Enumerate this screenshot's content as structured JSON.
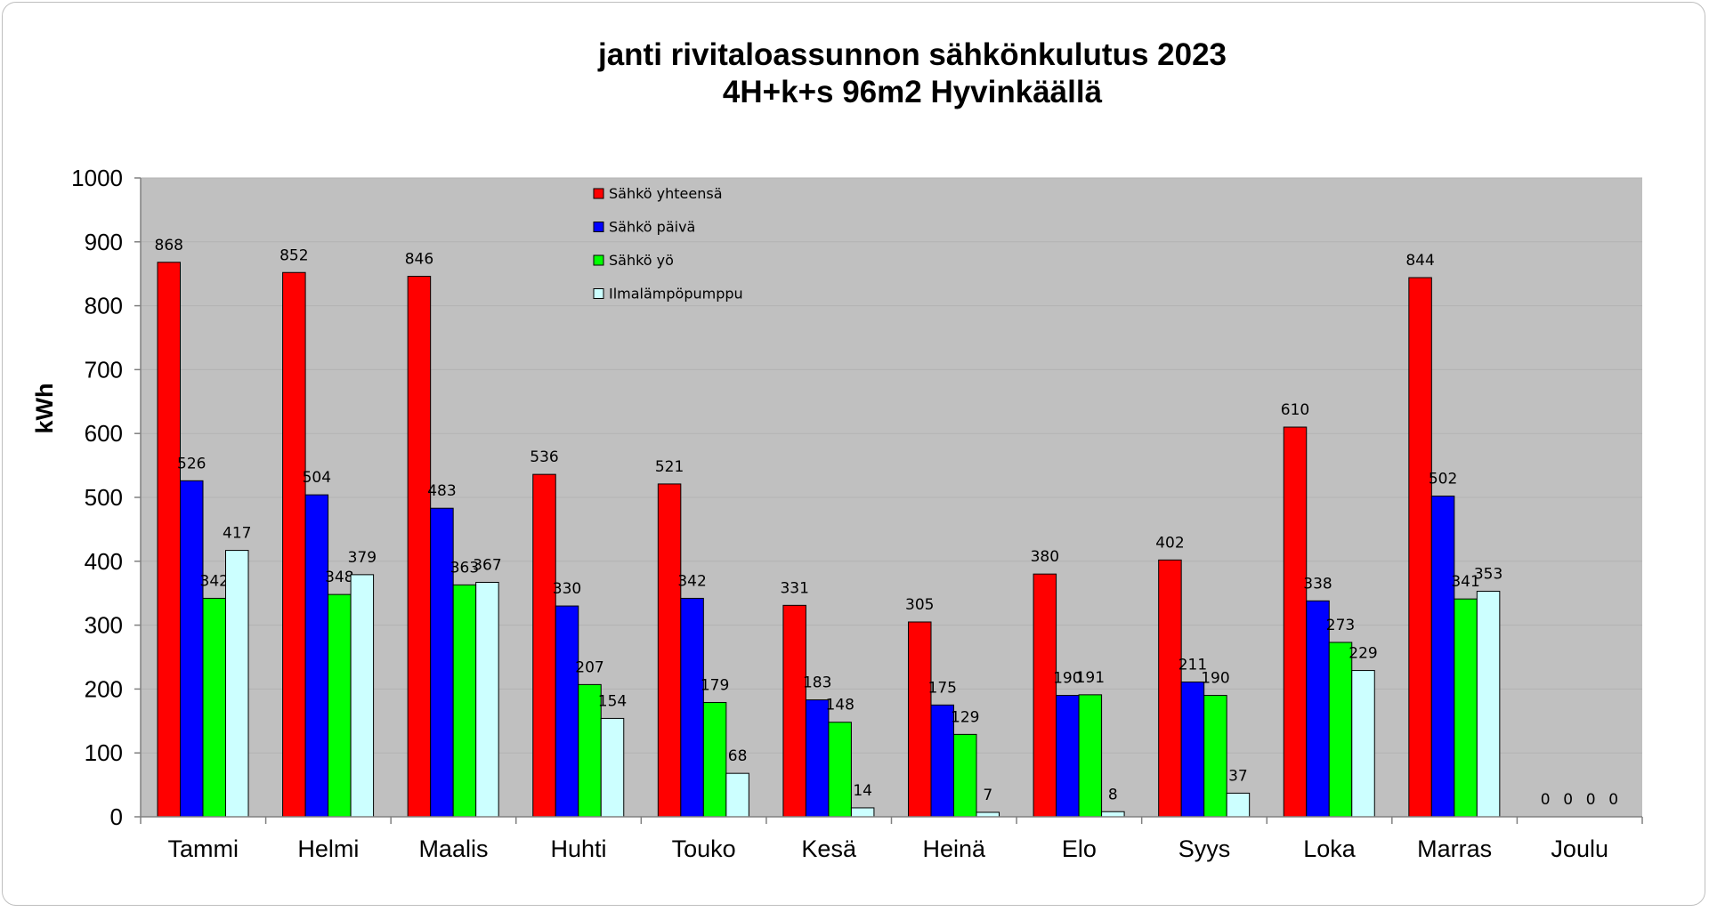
{
  "chart_data": {
    "type": "bar",
    "title": "janti rivitaloassunnon sähkönkulutus 2023",
    "subtitle": "4H+k+s 96m2 Hyvinkäällä",
    "ylabel": "kWh",
    "xlabel": "",
    "ylim": [
      0,
      1000
    ],
    "ytick_step": 100,
    "grid": true,
    "legend_position": "top-center",
    "plot_background": "#c0c0c0",
    "categories": [
      "Tammi",
      "Helmi",
      "Maalis",
      "Huhti",
      "Touko",
      "Kesä",
      "Heinä",
      "Elo",
      "Syys",
      "Loka",
      "Marras",
      "Joulu"
    ],
    "series": [
      {
        "name": "Sähkö yhteensä",
        "color": "#ff0000",
        "values": [
          868,
          852,
          846,
          536,
          521,
          331,
          305,
          380,
          402,
          610,
          844,
          0
        ]
      },
      {
        "name": "Sähkö päivä",
        "color": "#0000ff",
        "values": [
          526,
          504,
          483,
          330,
          342,
          183,
          175,
          190,
          211,
          338,
          502,
          0
        ]
      },
      {
        "name": "Sähkö yö",
        "color": "#00ff00",
        "values": [
          342,
          348,
          363,
          207,
          179,
          148,
          129,
          191,
          190,
          273,
          341,
          0
        ]
      },
      {
        "name": "Ilmalämpöpumppu",
        "color": "#ccffff",
        "values": [
          417,
          379,
          367,
          154,
          68,
          14,
          7,
          8,
          37,
          229,
          353,
          0
        ]
      }
    ]
  }
}
